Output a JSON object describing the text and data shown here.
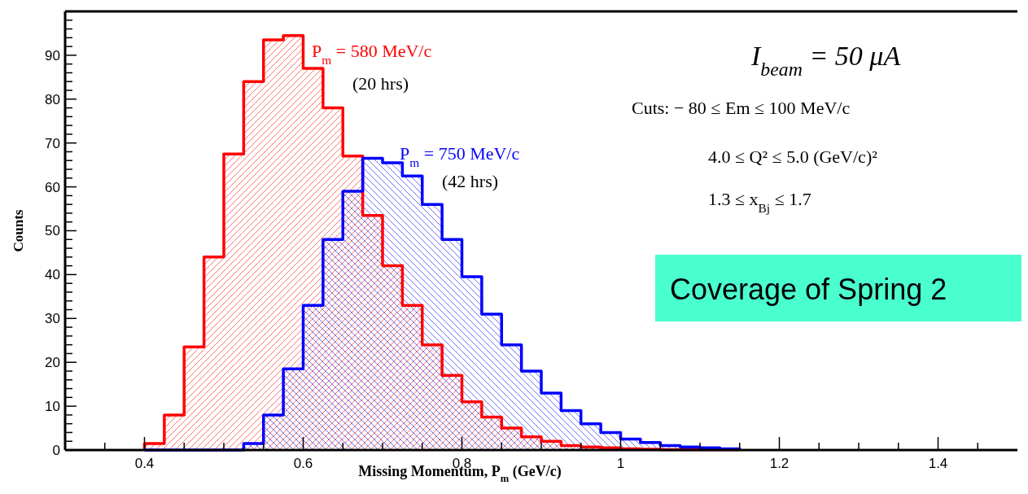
{
  "chart_data": {
    "type": "histogram",
    "xlabel": "Missing Momentum, P$_{m}$ (GeV/c)",
    "ylabel": "Counts",
    "bins": [
      0.4,
      0.425,
      0.45,
      0.475,
      0.5,
      0.525,
      0.55,
      0.575,
      0.6,
      0.625,
      0.65,
      0.675,
      0.7,
      0.725,
      0.75,
      0.775,
      0.8,
      0.825,
      0.85,
      0.875,
      0.9,
      0.925,
      0.95,
      0.975,
      1.0,
      1.025,
      1.05,
      1.075,
      1.1,
      1.125,
      1.15
    ],
    "series": [
      {
        "name": "P$_{m}$ = 580 MeV/c",
        "color": "#ff0000",
        "values": [
          1.5,
          8,
          23.5,
          44,
          67.5,
          84,
          93.5,
          94.5,
          87,
          78,
          67,
          53.5,
          42,
          33,
          24,
          17,
          11,
          7.5,
          5,
          3,
          2,
          1,
          0.7,
          0.5,
          0.3,
          0.2,
          0.1,
          0.1,
          0.1,
          0.1
        ]
      },
      {
        "name": "P$_{m}$ = 750 MeV/c",
        "color": "#0000ff",
        "values": [
          0,
          0,
          0,
          0,
          0,
          1.5,
          8,
          18.5,
          33,
          48,
          59,
          66.5,
          65.5,
          62.5,
          56,
          48,
          39.5,
          31,
          24,
          18,
          13,
          9,
          6,
          4,
          2.5,
          1.7,
          1,
          0.7,
          0.5,
          0.3
        ]
      }
    ],
    "xlim": [
      0.3,
      1.5
    ],
    "xticks": [
      {
        "value": 0.35,
        "label": null
      },
      {
        "value": 0.4,
        "label": "0.4"
      },
      {
        "value": 0.45,
        "label": null
      },
      {
        "value": 0.5,
        "label": null
      },
      {
        "value": 0.55,
        "label": null
      },
      {
        "value": 0.6,
        "label": "0.6"
      },
      {
        "value": 0.65,
        "label": null
      },
      {
        "value": 0.7,
        "label": null
      },
      {
        "value": 0.75,
        "label": null
      },
      {
        "value": 0.8,
        "label": "0.8"
      },
      {
        "value": 0.85,
        "label": null
      },
      {
        "value": 0.9,
        "label": null
      },
      {
        "value": 0.95,
        "label": null
      },
      {
        "value": 1,
        "label": "1"
      },
      {
        "value": 1.05,
        "label": null
      },
      {
        "value": 1.1,
        "label": null
      },
      {
        "value": 1.15,
        "label": null
      },
      {
        "value": 1.2,
        "label": "1.2"
      },
      {
        "value": 1.25,
        "label": null
      },
      {
        "value": 1.3,
        "label": null
      },
      {
        "value": 1.35,
        "label": null
      },
      {
        "value": 1.4,
        "label": "1.4"
      },
      {
        "value": 1.45,
        "label": null
      }
    ],
    "ylim": [
      0,
      100
    ],
    "yticks": [
      0,
      {
        "value": 2,
        "label": null
      },
      {
        "value": 4,
        "label": null
      },
      {
        "value": 6,
        "label": null
      },
      {
        "value": 8,
        "label": null
      },
      10,
      {
        "value": 12,
        "label": null
      },
      {
        "value": 14,
        "label": null
      },
      {
        "value": 16,
        "label": null
      },
      {
        "value": 18,
        "label": null
      },
      20,
      {
        "value": 22,
        "label": null
      },
      {
        "value": 24,
        "label": null
      },
      {
        "value": 26,
        "label": null
      },
      {
        "value": 28,
        "label": null
      },
      30,
      {
        "value": 32,
        "label": null
      },
      {
        "value": 34,
        "label": null
      },
      {
        "value": 36,
        "label": null
      },
      {
        "value": 38,
        "label": null
      },
      40,
      {
        "value": 42,
        "label": null
      },
      {
        "value": 44,
        "label": null
      },
      {
        "value": 46,
        "label": null
      },
      {
        "value": 48,
        "label": null
      },
      50,
      {
        "value": 52,
        "label": null
      },
      {
        "value": 54,
        "label": null
      },
      {
        "value": 56,
        "label": null
      },
      {
        "value": 58,
        "label": null
      },
      60,
      {
        "value": 62,
        "label": null
      },
      {
        "value": 64,
        "label": null
      },
      {
        "value": 66,
        "label": null
      },
      {
        "value": 68,
        "label": null
      },
      70,
      {
        "value": 72,
        "label": null
      },
      {
        "value": 74,
        "label": null
      },
      {
        "value": 76,
        "label": null
      },
      {
        "value": 78,
        "label": null
      },
      80,
      {
        "value": 82,
        "label": null
      },
      {
        "value": 84,
        "label": null
      },
      {
        "value": 86,
        "label": null
      },
      {
        "value": 88,
        "label": null
      },
      90,
      {
        "value": 92,
        "label": null
      },
      {
        "value": 94,
        "label": null
      },
      {
        "value": 96,
        "label": null
      },
      {
        "value": 98,
        "label": null
      }
    ],
    "annotations": [
      "(20 hrs)",
      "(42 hrs)",
      "I$_{beam}$ = 50 μA",
      "Cuts:  − 80 ≤ Em ≤ 100 MeV/c",
      "4.0 ≤ Q² ≤ 5.0 (GeV/c)²",
      "1.3 ≤ x$_{Bj}$ ≤ 1.7",
      "Coverage of Spring 2"
    ],
    "grid": false,
    "legend": "top"
  }
}
